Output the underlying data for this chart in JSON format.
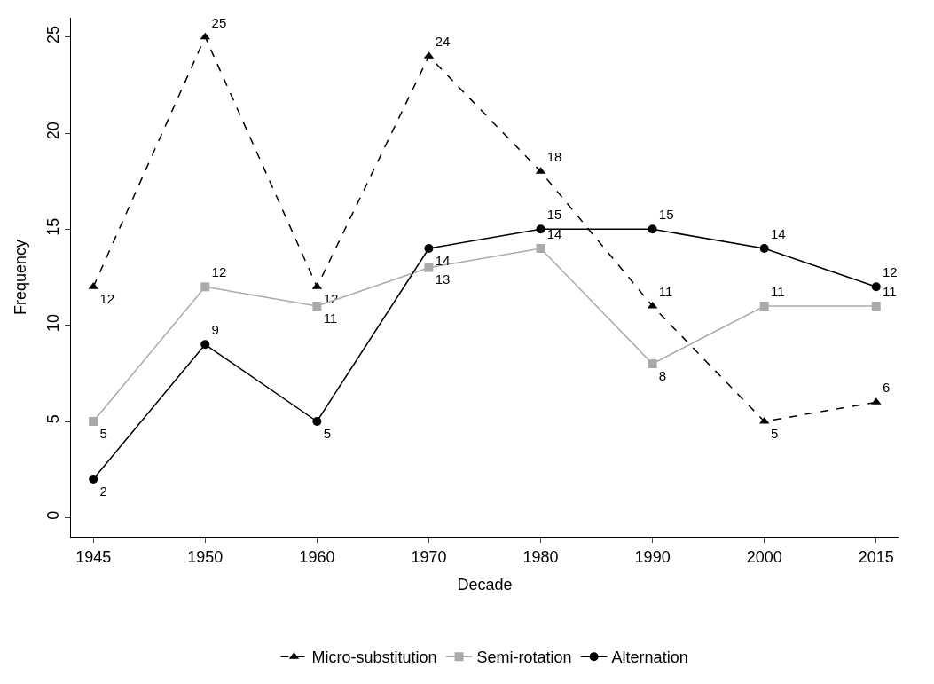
{
  "chart_data": {
    "type": "line",
    "xlabel": "Decade",
    "ylabel": "Frequency",
    "categories": [
      "1945",
      "1950",
      "1960",
      "1970",
      "1980",
      "1990",
      "2000",
      "2015"
    ],
    "series": [
      {
        "name": "Micro-substitution",
        "color": "#000000",
        "marker": "triangle",
        "line_style": "dashed",
        "values": [
          12,
          25,
          12,
          24,
          18,
          11,
          5,
          6
        ]
      },
      {
        "name": "Semi-rotation",
        "color": "#aaaaaa",
        "marker": "square",
        "line_style": "solid",
        "values": [
          5,
          12,
          11,
          13,
          14,
          8,
          11,
          11
        ]
      },
      {
        "name": "Alternation",
        "color": "#000000",
        "marker": "circle",
        "line_style": "solid",
        "values": [
          2,
          9,
          5,
          14,
          15,
          15,
          14,
          12
        ]
      }
    ],
    "ylim": [
      -1,
      26
    ],
    "yticks": [
      0,
      5,
      10,
      15,
      20,
      25
    ],
    "data_labels": true,
    "legend": "bottom"
  }
}
